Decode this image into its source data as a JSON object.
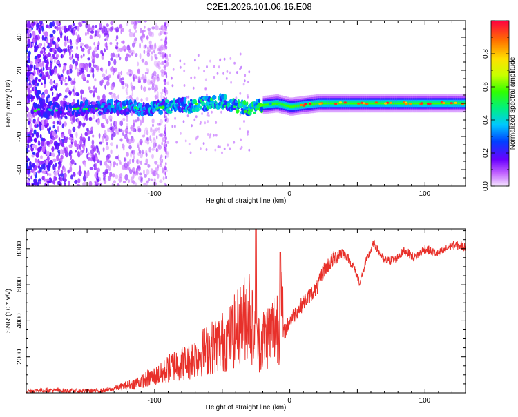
{
  "figure": {
    "title": "C2E1.2026.101.06.16.E08"
  },
  "chart_data": [
    {
      "type": "heatmap",
      "title": "C2E1.2026.101.06.16.E08",
      "xlabel": "Height of straight line (km)",
      "ylabel": "Frequency (Hz)",
      "xlim": [
        -195,
        130
      ],
      "ylim": [
        -50,
        50
      ],
      "xticks": [
        -100,
        0,
        100
      ],
      "xtick_labels": [
        "-100",
        "0",
        "100"
      ],
      "yticks": [
        -40,
        -20,
        0,
        20,
        40
      ],
      "ytick_labels": [
        "-40",
        "-20",
        "0",
        "20",
        "40"
      ],
      "ridge": {
        "description": "dominant spectral ridge near 0 Hz",
        "x": [
          -190,
          -150,
          -130,
          -110,
          -90,
          -70,
          -60,
          -50,
          -40,
          -30,
          -20,
          -10,
          0,
          10,
          20,
          50,
          80,
          100,
          130
        ],
        "y": [
          -4,
          -3,
          -2,
          -3,
          -2,
          -1,
          0,
          1,
          -2,
          -3,
          -1,
          0,
          -2,
          -1,
          0,
          0,
          0,
          0,
          0
        ]
      },
      "noise_region": {
        "x_range": [
          -195,
          -90
        ],
        "y_range": [
          -50,
          50
        ]
      },
      "colorbar": {
        "label": "Normalized spectral amplitude",
        "range": [
          0,
          1
        ],
        "ticks": [
          0.0,
          0.2,
          0.4,
          0.6,
          0.8
        ],
        "tick_labels": [
          "0.0",
          "0.2",
          "0.4",
          "0.6",
          "0.8"
        ]
      }
    },
    {
      "type": "line",
      "xlabel": "Height of straight line (km)",
      "ylabel": "SNR (10 * v/v)",
      "xlim": [
        -195,
        130
      ],
      "ylim": [
        0,
        9100
      ],
      "xticks": [
        -100,
        0,
        100
      ],
      "xtick_labels": [
        "-100",
        "0",
        "100"
      ],
      "yticks": [
        2000,
        4000,
        6000,
        8000
      ],
      "ytick_labels": [
        "2000",
        "4000",
        "6000",
        "8000"
      ],
      "series": [
        {
          "name": "SNR",
          "color": "#e8302a",
          "x": [
            -195,
            -180,
            -160,
            -140,
            -125,
            -115,
            -105,
            -95,
            -85,
            -75,
            -65,
            -55,
            -45,
            -35,
            -30,
            -25,
            -15,
            -8,
            -3,
            0,
            5,
            12,
            20,
            25,
            32,
            38,
            42,
            47,
            52,
            56,
            62,
            70,
            78,
            85,
            92,
            100,
            110,
            120,
            130
          ],
          "y": [
            100,
            150,
            100,
            120,
            250,
            400,
            600,
            800,
            1200,
            1300,
            1700,
            2000,
            2300,
            3000,
            3500,
            2000,
            2500,
            3000,
            3500,
            4000,
            4500,
            5200,
            5800,
            6800,
            7400,
            7800,
            7600,
            7000,
            6100,
            7200,
            8300,
            7300,
            7400,
            7900,
            7500,
            8000,
            7700,
            8200,
            8100
          ]
        }
      ]
    }
  ],
  "colors": {
    "trace": "#e8302a",
    "background": "#ffffff",
    "frame": "#000000"
  }
}
